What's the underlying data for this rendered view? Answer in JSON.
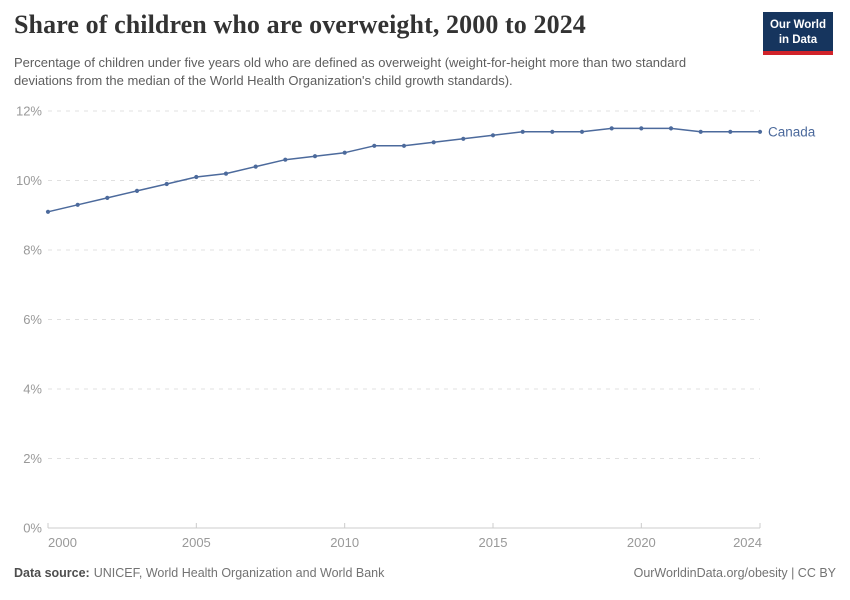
{
  "header": {
    "logo": {
      "line1": "Our World",
      "line2": "in Data",
      "bg_color": "#16355e",
      "accent_color": "#d1232a"
    }
  },
  "chart_data": {
    "type": "line",
    "title": "Share of children who are overweight, 2000 to 2024",
    "subtitle": "Percentage of children under five years old who are defined as overweight (weight-for-height more than two standard deviations from the median of the World Health Organization's child growth standards).",
    "x": [
      2000,
      2001,
      2002,
      2003,
      2004,
      2005,
      2006,
      2007,
      2008,
      2009,
      2010,
      2011,
      2012,
      2013,
      2014,
      2015,
      2016,
      2017,
      2018,
      2019,
      2020,
      2021,
      2022,
      2023,
      2024
    ],
    "series": [
      {
        "name": "Canada",
        "color": "#4c6a9c",
        "values": [
          9.1,
          9.3,
          9.5,
          9.7,
          9.9,
          10.1,
          10.2,
          10.4,
          10.6,
          10.7,
          10.8,
          11.0,
          11.0,
          11.1,
          11.2,
          11.3,
          11.4,
          11.4,
          11.4,
          11.5,
          11.5,
          11.5,
          11.4,
          11.4,
          11.4
        ]
      }
    ],
    "ylim": [
      0,
      12
    ],
    "y_ticks": [
      0,
      2,
      4,
      6,
      8,
      10,
      12
    ],
    "y_tick_suffix": "%",
    "x_ticks": [
      2000,
      2005,
      2010,
      2015,
      2020,
      2024
    ],
    "grid": "horizontal-dashed",
    "legend_position": "end-of-line-label",
    "marker": "dot"
  },
  "footer": {
    "source_label": "Data source:",
    "source_text": "UNICEF, World Health Organization and World Bank",
    "right_text": "OurWorldinData.org/obesity | CC BY"
  },
  "colors": {
    "axis_label": "#999999",
    "gridline": "#e0e0e0",
    "axis_line": "#cccccc",
    "title": "#333333",
    "subtitle": "#5e5e5e"
  }
}
